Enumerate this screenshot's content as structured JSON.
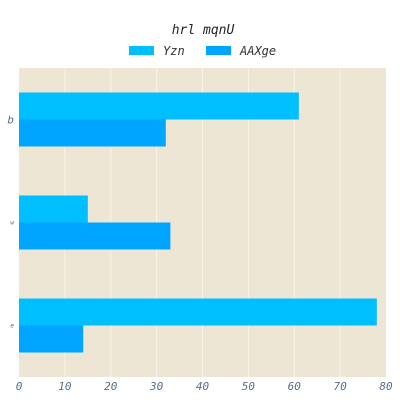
{
  "chart_data": {
    "type": "bar",
    "orientation": "horizontal",
    "title": "hrl mqnU",
    "xlabel": "",
    "ylabel": "",
    "categories": [
      "b",
      "w",
      "e"
    ],
    "series": [
      {
        "name": "Yzn",
        "values": [
          61,
          15,
          78
        ],
        "color": "#00bfff"
      },
      {
        "name": "AAXge",
        "values": [
          32,
          33,
          14
        ],
        "color": "#00a5ff"
      }
    ],
    "xlim": [
      0,
      80
    ],
    "xticks": [
      0,
      10,
      20,
      30,
      40,
      50,
      60,
      70,
      80
    ],
    "grid": true,
    "legend_position": "top-center",
    "background": "#ede6d4",
    "grid_color": "#f7f3ea"
  }
}
